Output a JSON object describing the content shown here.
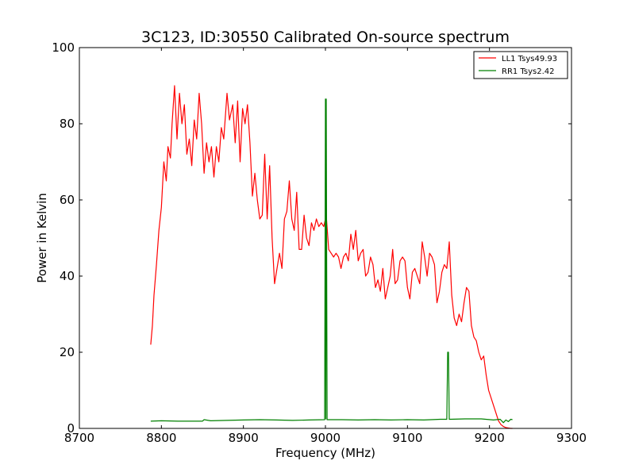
{
  "chart_data": {
    "type": "line",
    "title": "3C123, ID:30550 Calibrated On-source spectrum",
    "xlabel": "Frequency (MHz)",
    "ylabel": "Power in Kelvin",
    "xlim": [
      8700,
      9300
    ],
    "ylim": [
      0,
      100
    ],
    "xticks": [
      8700,
      8800,
      8900,
      9000,
      9100,
      9200,
      9300
    ],
    "yticks": [
      0,
      20,
      40,
      60,
      80,
      100
    ],
    "grid": false,
    "legend_position": "top-right",
    "series": [
      {
        "name": "LL1 Tsys49.93",
        "color": "#ff0000",
        "x": [
          8787,
          8789,
          8791,
          8794,
          8797,
          8800,
          8803,
          8806,
          8808,
          8811,
          8813,
          8816,
          8819,
          8822,
          8825,
          8828,
          8831,
          8834,
          8837,
          8840,
          8843,
          8846,
          8849,
          8852,
          8855,
          8858,
          8861,
          8864,
          8867,
          8870,
          8873,
          8876,
          8880,
          8883,
          8887,
          8890,
          8893,
          8896,
          8899,
          8902,
          8905,
          8908,
          8911,
          8914,
          8917,
          8920,
          8923,
          8926,
          8929,
          8932,
          8935,
          8938,
          8941,
          8944,
          8947,
          8950,
          8953,
          8956,
          8959,
          8962,
          8965,
          8968,
          8971,
          8974,
          8977,
          8980,
          8983,
          8986,
          8989,
          8992,
          8995,
          8998,
          9001,
          9004,
          9007,
          9010,
          9013,
          9016,
          9019,
          9022,
          9025,
          9028,
          9031,
          9034,
          9037,
          9040,
          9043,
          9046,
          9049,
          9052,
          9055,
          9058,
          9061,
          9064,
          9067,
          9070,
          9073,
          9076,
          9079,
          9082,
          9085,
          9088,
          9091,
          9094,
          9097,
          9100,
          9103,
          9106,
          9109,
          9112,
          9115,
          9118,
          9121,
          9124,
          9127,
          9130,
          9133,
          9136,
          9139,
          9142,
          9145,
          9148,
          9151,
          9154,
          9157,
          9160,
          9163,
          9166,
          9169,
          9172,
          9175,
          9178,
          9181,
          9184,
          9187,
          9190,
          9193,
          9196,
          9199,
          9202,
          9205,
          9208,
          9211,
          9214,
          9217,
          9220,
          9223,
          9226,
          9228
        ],
        "y": [
          22,
          27,
          35,
          43,
          52,
          58,
          70,
          65,
          74,
          71,
          80,
          90,
          76,
          88,
          80,
          85,
          72,
          76,
          69,
          81,
          76,
          88,
          80,
          67,
          75,
          70,
          74,
          66,
          74,
          70,
          79,
          76,
          88,
          81,
          85,
          75,
          86,
          70,
          84,
          80,
          85,
          75,
          61,
          67,
          60,
          55,
          56,
          72,
          55,
          69,
          50,
          38,
          42,
          46,
          42,
          55,
          57,
          65,
          55,
          52,
          62,
          47,
          47,
          56,
          50,
          48,
          54,
          52,
          55,
          53,
          54,
          53,
          56,
          47,
          46,
          45,
          46,
          45,
          42,
          45,
          46,
          44,
          51,
          47,
          52,
          44,
          46,
          47,
          40,
          41,
          45,
          43,
          37,
          39,
          36,
          42,
          34,
          37,
          40,
          47,
          38,
          39,
          44,
          45,
          44,
          37,
          34,
          41,
          42,
          40,
          38,
          49,
          45,
          40,
          46,
          45,
          43,
          33,
          36,
          41,
          43,
          42,
          49,
          35,
          29,
          27,
          30,
          28,
          33,
          37,
          36,
          27,
          24,
          23,
          20,
          18,
          19,
          14,
          10,
          8,
          6,
          4,
          2,
          1,
          0.5,
          0.2,
          0.1,
          0,
          0
        ]
      },
      {
        "name": "RR1 Tsys2.42",
        "color": "#008000",
        "x": [
          8787,
          8800,
          8820,
          8850,
          8852,
          8860,
          8880,
          8900,
          8920,
          8940,
          8960,
          8980,
          8999,
          9000,
          9000.5,
          9001,
          9002,
          9020,
          9040,
          9060,
          9080,
          9100,
          9120,
          9140,
          9148,
          9149,
          9150,
          9151,
          9152,
          9170,
          9190,
          9205,
          9213,
          9217,
          9220,
          9223,
          9226,
          9228
        ],
        "y": [
          1.9,
          2.0,
          1.9,
          1.9,
          2.3,
          2.0,
          2.1,
          2.2,
          2.3,
          2.2,
          2.1,
          2.2,
          2.3,
          86.5,
          2.5,
          86.5,
          2.3,
          2.3,
          2.2,
          2.3,
          2.2,
          2.3,
          2.2,
          2.4,
          2.4,
          20,
          20,
          2.4,
          2.4,
          2.5,
          2.5,
          2.2,
          2.4,
          1.5,
          2.2,
          1.8,
          2.4,
          2.3
        ]
      }
    ]
  }
}
